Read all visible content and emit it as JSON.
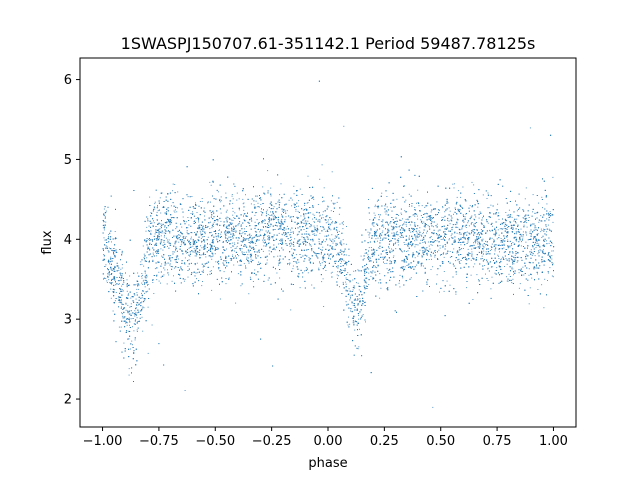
{
  "chart_data": {
    "type": "scatter",
    "title": "1SWASPJ150707.61-351142.1 Period 59487.78125s",
    "xlabel": "phase",
    "ylabel": "flux",
    "xlim": [
      -1.1,
      1.1
    ],
    "ylim": [
      1.65,
      6.27
    ],
    "x_ticks": [
      -1.0,
      -0.75,
      -0.5,
      -0.25,
      0.0,
      0.25,
      0.5,
      0.75,
      1.0
    ],
    "x_tick_labels": [
      "−1.00",
      "−0.75",
      "−0.50",
      "−0.25",
      "0.00",
      "0.25",
      "0.50",
      "0.75",
      "1.00"
    ],
    "y_ticks": [
      2,
      3,
      4,
      5,
      6
    ],
    "y_tick_labels": [
      "2",
      "3",
      "4",
      "5",
      "6"
    ],
    "grid": false,
    "legend": "none",
    "marker_color": "#1f77b4",
    "series": [
      {
        "light_curve_profile": {
          "phase": [
            -1.0,
            -0.97,
            -0.94,
            -0.91,
            -0.89,
            -0.87,
            -0.85,
            -0.83,
            -0.81,
            -0.79,
            -0.75,
            -0.5,
            -0.25,
            0.0,
            0.05,
            0.08,
            0.1,
            0.12,
            0.14,
            0.16,
            0.18,
            0.2,
            0.25,
            0.5,
            0.75,
            1.0
          ],
          "flux": [
            4.0,
            3.8,
            3.55,
            3.25,
            3.05,
            2.95,
            3.05,
            3.35,
            3.7,
            3.95,
            4.05,
            4.0,
            4.1,
            4.0,
            3.85,
            3.55,
            3.25,
            3.05,
            3.15,
            3.5,
            3.8,
            3.95,
            4.05,
            4.0,
            3.98,
            4.0
          ]
        },
        "flux_scatter": 0.28,
        "outlier_flux_range": [
          1.85,
          6.1
        ]
      }
    ]
  }
}
